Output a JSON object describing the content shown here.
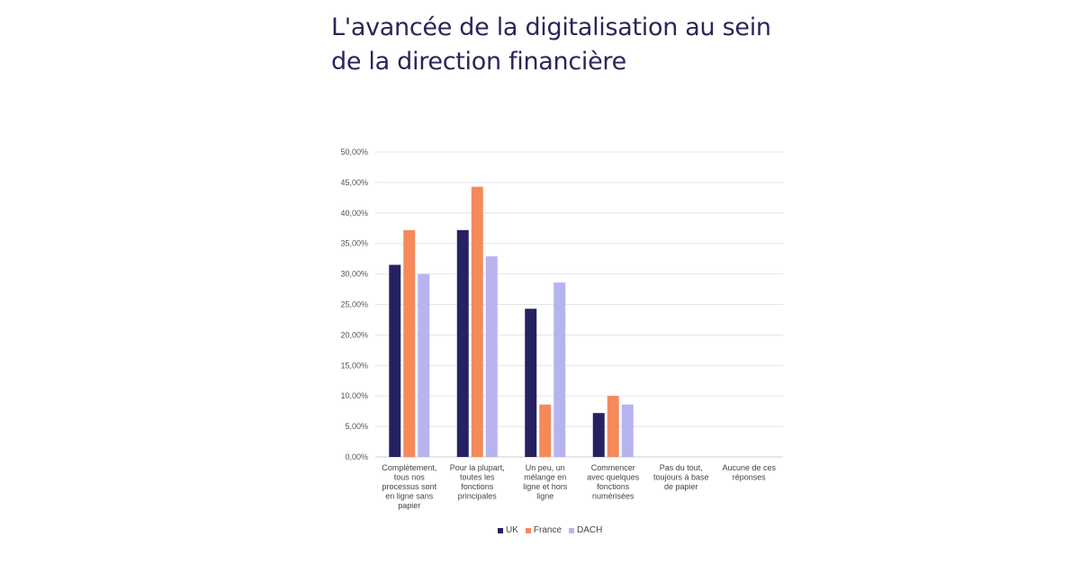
{
  "title_lines": [
    "L'avancée de la digitalisation au sein",
    "de la direction financière"
  ],
  "colors": {
    "UK": "#262160",
    "France": "#f5895a",
    "DACH": "#b7b3ef",
    "title": "#2a2658",
    "grid": "#e4e4e4"
  },
  "chart_data": {
    "type": "bar",
    "title": "L'avancée de la digitalisation au sein de la direction financière",
    "categories": [
      [
        "Complètement,",
        "tous nos",
        "processus sont",
        "en ligne sans",
        "papier"
      ],
      [
        "Pour la plupart,",
        "toutes les",
        "fonctions",
        "principales"
      ],
      [
        "Un peu, un",
        "mélange en",
        "ligne et hors",
        "ligne"
      ],
      [
        "Commencer",
        "avec quelques",
        "fonctions",
        "numérisées"
      ],
      [
        "Pas du tout,",
        "toujours à base",
        "de papier"
      ],
      [
        "Aucune de ces",
        "réponses"
      ]
    ],
    "series": [
      {
        "name": "UK",
        "values": [
          31.5,
          37.2,
          24.3,
          7.2,
          0,
          0
        ]
      },
      {
        "name": "France",
        "values": [
          37.2,
          44.3,
          8.6,
          10.0,
          0,
          0
        ]
      },
      {
        "name": "DACH",
        "values": [
          30.0,
          32.9,
          28.6,
          8.6,
          0,
          0
        ]
      }
    ],
    "ylim": [
      0,
      50
    ],
    "yticks": [
      "0,00%",
      "5,00%",
      "10,00%",
      "15,00%",
      "20,00%",
      "25,00%",
      "30,00%",
      "35,00%",
      "40,00%",
      "45,00%",
      "50,00%"
    ],
    "grid": true,
    "legend": "bottom"
  }
}
